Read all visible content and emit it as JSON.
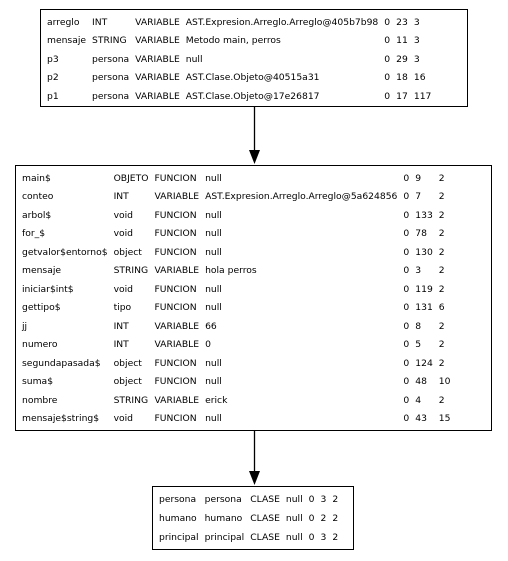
{
  "tables": [
    {
      "rows": [
        [
          "arreglo",
          "INT",
          "VARIABLE",
          "AST.Expresion.Arreglo.Arreglo@405b7b98",
          "0",
          "23",
          "3"
        ],
        [
          "mensaje",
          "STRING",
          "VARIABLE",
          "Metodo main, perros",
          "0",
          "11",
          "3"
        ],
        [
          "p3",
          "persona",
          "VARIABLE",
          "null",
          "0",
          "29",
          "3"
        ],
        [
          "p2",
          "persona",
          "VARIABLE",
          "AST.Clase.Objeto@40515a31",
          "0",
          "18",
          "16"
        ],
        [
          "p1",
          "persona",
          "VARIABLE",
          "AST.Clase.Objeto@17e26817",
          "0",
          "17",
          "117"
        ]
      ]
    },
    {
      "rows": [
        [
          "main$",
          "OBJETO",
          "FUNCION",
          "null",
          "0",
          "9",
          "2"
        ],
        [
          "conteo",
          "INT",
          "VARIABLE",
          "AST.Expresion.Arreglo.Arreglo@5a624856",
          "0",
          "7",
          "2"
        ],
        [
          "arbol$",
          "void",
          "FUNCION",
          "null",
          "0",
          "133",
          "2"
        ],
        [
          "for_$",
          "void",
          "FUNCION",
          "null",
          "0",
          "78",
          "2"
        ],
        [
          "getvalor$entorno$",
          "object",
          "FUNCION",
          "null",
          "0",
          "130",
          "2"
        ],
        [
          "mensaje",
          "STRING",
          "VARIABLE",
          "hola perros",
          "0",
          "3",
          "2"
        ],
        [
          "iniciar$int$",
          "void",
          "FUNCION",
          "null",
          "0",
          "119",
          "2"
        ],
        [
          "gettipo$",
          "tipo",
          "FUNCION",
          "null",
          "0",
          "131",
          "6"
        ],
        [
          "jj",
          "INT",
          "VARIABLE",
          "66",
          "0",
          "8",
          "2"
        ],
        [
          "numero",
          "INT",
          "VARIABLE",
          "0",
          "0",
          "5",
          "2"
        ],
        [
          "segundapasada$",
          "object",
          "FUNCION",
          "null",
          "0",
          "124",
          "2"
        ],
        [
          "suma$",
          "object",
          "FUNCION",
          "null",
          "0",
          "48",
          "10"
        ],
        [
          "nombre",
          "STRING",
          "VARIABLE",
          "erick",
          "0",
          "4",
          "2"
        ],
        [
          "mensaje$string$",
          "void",
          "FUNCION",
          "null",
          "0",
          "43",
          "15"
        ]
      ]
    },
    {
      "rows": [
        [
          "persona",
          "persona",
          "CLASE",
          "null",
          "0",
          "3",
          "2"
        ],
        [
          "humano",
          "humano",
          "CLASE",
          "null",
          "0",
          "2",
          "2"
        ],
        [
          "principal",
          "principal",
          "CLASE",
          "null",
          "0",
          "3",
          "2"
        ]
      ]
    }
  ],
  "colors": {
    "border": "#000000",
    "text": "#000000",
    "background": "#ffffff"
  }
}
